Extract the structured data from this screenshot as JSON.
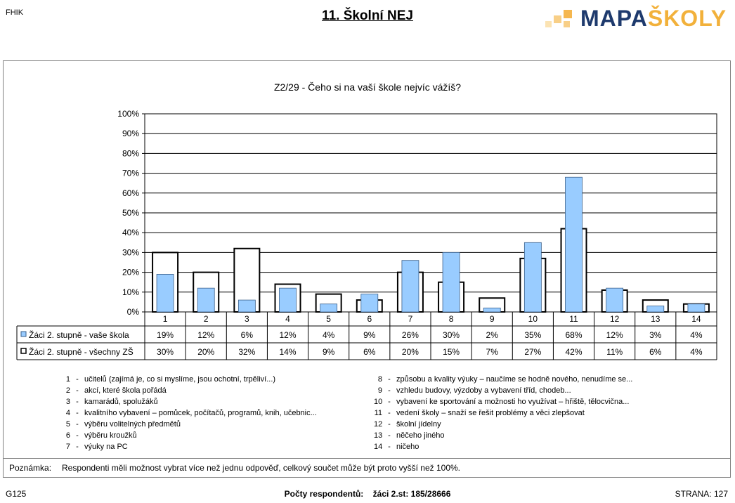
{
  "header": {
    "school_code": "FHIK",
    "page_title": "11. Školní NEJ",
    "logo_main": "MAPA",
    "logo_accent": "ŠKOLY"
  },
  "chart_data": {
    "type": "bar",
    "title": "Z2/29 - Čeho si na vaší škole nejvíc vážíš?",
    "categories": [
      "1",
      "2",
      "3",
      "4",
      "5",
      "6",
      "7",
      "8",
      "9",
      "10",
      "11",
      "12",
      "13",
      "14"
    ],
    "ylim": [
      0,
      100
    ],
    "yticks": [
      "0%",
      "10%",
      "20%",
      "30%",
      "40%",
      "50%",
      "60%",
      "70%",
      "80%",
      "90%",
      "100%"
    ],
    "grid": true,
    "series": [
      {
        "name": "Žáci 2. stupně - vaše škola",
        "values": [
          19,
          12,
          6,
          12,
          4,
          9,
          26,
          30,
          2,
          35,
          68,
          12,
          3,
          4
        ],
        "labels": [
          "19%",
          "12%",
          "6%",
          "12%",
          "4%",
          "9%",
          "26%",
          "30%",
          "2%",
          "35%",
          "68%",
          "12%",
          "3%",
          "4%"
        ],
        "color": "#99ccff",
        "style": "filled"
      },
      {
        "name": "Žáci 2. stupně - všechny ZŠ",
        "values": [
          30,
          20,
          32,
          14,
          9,
          6,
          20,
          15,
          7,
          27,
          42,
          11,
          6,
          4
        ],
        "labels": [
          "30%",
          "20%",
          "32%",
          "14%",
          "9%",
          "6%",
          "20%",
          "15%",
          "7%",
          "27%",
          "42%",
          "11%",
          "6%",
          "4%"
        ],
        "color": "#000000",
        "style": "outline"
      }
    ]
  },
  "category_list": [
    {
      "num": "1",
      "text": "učitelů (zajímá je, co si myslíme, jsou ochotní, trpěliví...)"
    },
    {
      "num": "2",
      "text": "akcí, které škola pořádá"
    },
    {
      "num": "3",
      "text": "kamarádů, spolužáků"
    },
    {
      "num": "4",
      "text": "kvalitního vybavení – pomůcek, počítačů, programů, knih, učebnic..."
    },
    {
      "num": "5",
      "text": "výběru volitelných předmětů"
    },
    {
      "num": "6",
      "text": "výběru kroužků"
    },
    {
      "num": "7",
      "text": "výuky na PC"
    },
    {
      "num": "8",
      "text": "způsobu a kvality výuky – naučíme se hodně nového, nenudíme se..."
    },
    {
      "num": "9",
      "text": "vzhledu budovy, výzdoby a vybavení tříd, chodeb..."
    },
    {
      "num": "10",
      "text": "vybavení ke sportování a možnosti ho využívat – hřiště, tělocvična..."
    },
    {
      "num": "11",
      "text": "vedení školy – snaží se řešit problémy a věci zlepšovat"
    },
    {
      "num": "12",
      "text": "školní jídelny"
    },
    {
      "num": "13",
      "text": "něčeho jiného"
    },
    {
      "num": "14",
      "text": "ničeho"
    }
  ],
  "note": {
    "label": "Poznámka:",
    "text": "Respondenti měli možnost vybrat více než jednu odpověď, celkový součet může být proto vyšší než 100%."
  },
  "footer": {
    "code": "G125",
    "respondents_label": "Počty respondentů:",
    "respondents_value": "žáci 2.st: 185/28666",
    "page": "STRANA: 127"
  }
}
